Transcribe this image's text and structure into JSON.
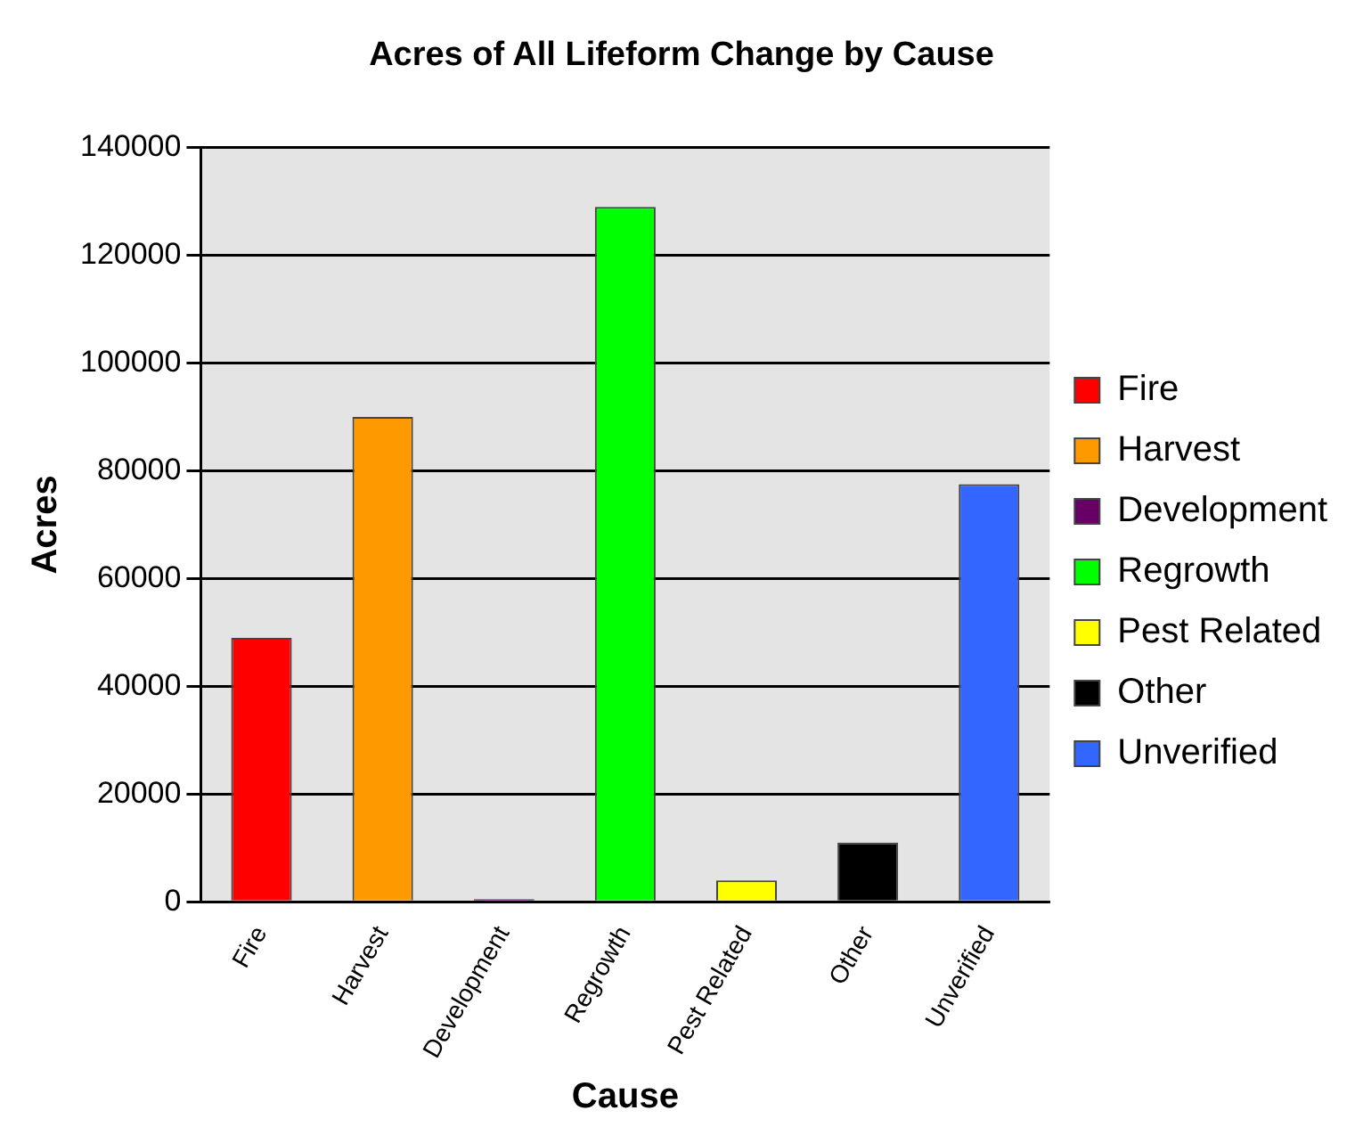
{
  "chart_data": {
    "type": "bar",
    "title": "Acres of All Lifeform Change by Cause",
    "xlabel": "Cause",
    "ylabel": "Acres",
    "categories": [
      "Fire",
      "Harvest",
      "Development",
      "Regrowth",
      "Pest Related",
      "Other",
      "Unverified"
    ],
    "series": [
      {
        "name": "Fire",
        "color": "#ff0000",
        "values": [
          49000,
          null,
          null,
          null,
          null,
          null,
          null
        ]
      },
      {
        "name": "Harvest",
        "color": "#ff9900",
        "values": [
          null,
          90000,
          null,
          null,
          null,
          null,
          null
        ]
      },
      {
        "name": "Development",
        "color": "#660066",
        "values": [
          null,
          null,
          500,
          null,
          null,
          null,
          null
        ]
      },
      {
        "name": "Regrowth",
        "color": "#00ff00",
        "values": [
          null,
          null,
          null,
          129000,
          null,
          null,
          null
        ]
      },
      {
        "name": "Pest Related",
        "color": "#ffff00",
        "values": [
          null,
          null,
          null,
          null,
          4000,
          null,
          null
        ]
      },
      {
        "name": "Other",
        "color": "#000000",
        "values": [
          null,
          null,
          null,
          null,
          null,
          11000,
          null
        ]
      },
      {
        "name": "Unverified",
        "color": "#3366ff",
        "values": [
          null,
          null,
          null,
          null,
          null,
          null,
          77500
        ]
      }
    ],
    "stacked": true,
    "ylim": [
      0,
      140000
    ],
    "yticks": [
      0,
      20000,
      40000,
      60000,
      80000,
      100000,
      120000,
      140000
    ],
    "grid": "y",
    "legend": "right"
  }
}
